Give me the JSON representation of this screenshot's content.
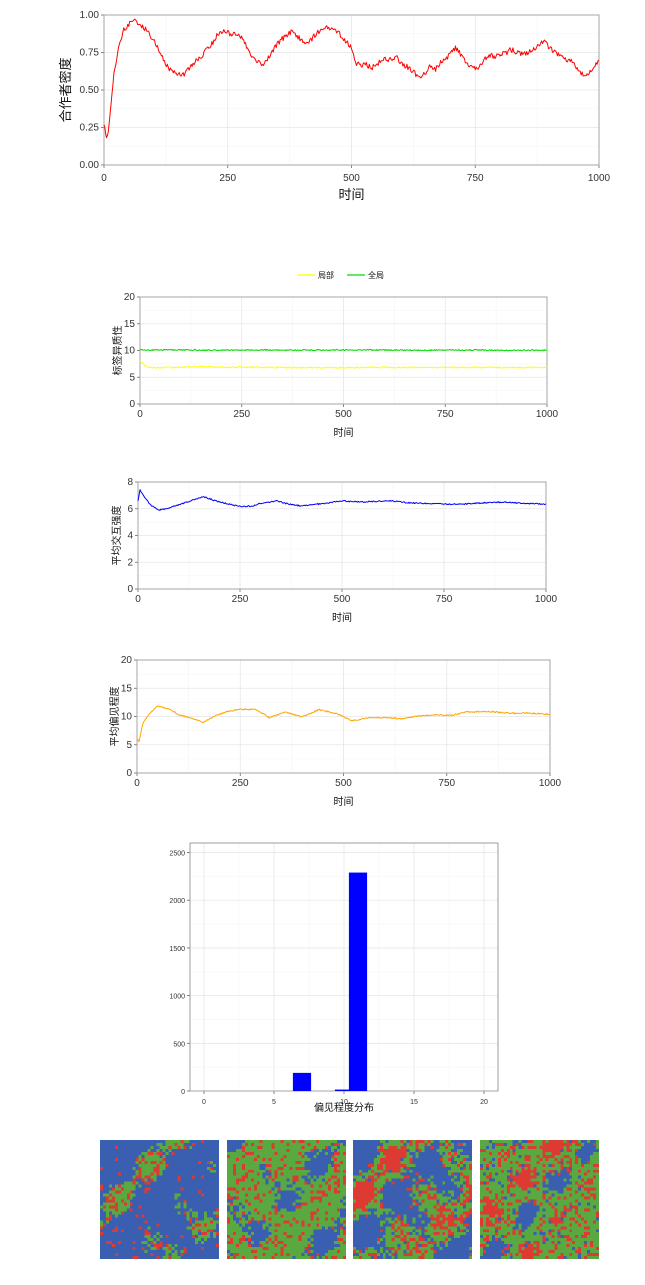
{
  "chart_data": [
    {
      "type": "line",
      "title": "",
      "xlabel": "时间",
      "ylabel": "合作者密度",
      "xlim": [
        0,
        1000
      ],
      "ylim": [
        0,
        1
      ],
      "x_ticks": [
        0,
        250,
        500,
        750,
        1000
      ],
      "x_tick_labels": [
        "0",
        "250",
        "500",
        "750",
        "1000"
      ],
      "y_ticks": [
        0,
        0.25,
        0.5,
        0.75,
        1
      ],
      "y_tick_labels": [
        "0.00",
        "0.25",
        "0.50",
        "0.75",
        "1.00"
      ],
      "grid": true,
      "series": [
        {
          "color": "#ff0000",
          "x": [
            0,
            5,
            10,
            20,
            30,
            40,
            50,
            60,
            70,
            80,
            90,
            100,
            110,
            120,
            130,
            140,
            150,
            160,
            170,
            180,
            190,
            200,
            210,
            220,
            230,
            240,
            250,
            260,
            270,
            280,
            290,
            300,
            310,
            320,
            330,
            340,
            350,
            360,
            370,
            380,
            390,
            400,
            410,
            420,
            430,
            440,
            450,
            460,
            470,
            480,
            490,
            500,
            510,
            520,
            530,
            540,
            550,
            560,
            570,
            580,
            590,
            600,
            610,
            620,
            630,
            640,
            650,
            660,
            670,
            680,
            690,
            700,
            710,
            720,
            730,
            740,
            750,
            760,
            770,
            780,
            790,
            800,
            810,
            820,
            830,
            840,
            850,
            860,
            870,
            880,
            890,
            900,
            910,
            920,
            930,
            940,
            950,
            960,
            970,
            980,
            990,
            1000
          ],
          "values": [
            0.28,
            0.17,
            0.25,
            0.6,
            0.8,
            0.9,
            0.94,
            0.96,
            0.95,
            0.92,
            0.88,
            0.83,
            0.77,
            0.7,
            0.65,
            0.62,
            0.6,
            0.6,
            0.64,
            0.68,
            0.7,
            0.74,
            0.78,
            0.82,
            0.87,
            0.89,
            0.88,
            0.87,
            0.87,
            0.84,
            0.78,
            0.72,
            0.69,
            0.66,
            0.7,
            0.76,
            0.81,
            0.84,
            0.87,
            0.89,
            0.86,
            0.83,
            0.82,
            0.84,
            0.88,
            0.9,
            0.92,
            0.91,
            0.89,
            0.86,
            0.82,
            0.78,
            0.68,
            0.66,
            0.67,
            0.65,
            0.66,
            0.7,
            0.71,
            0.7,
            0.72,
            0.68,
            0.66,
            0.64,
            0.6,
            0.58,
            0.62,
            0.66,
            0.64,
            0.68,
            0.7,
            0.75,
            0.78,
            0.74,
            0.69,
            0.65,
            0.64,
            0.66,
            0.71,
            0.73,
            0.72,
            0.74,
            0.74,
            0.77,
            0.76,
            0.74,
            0.74,
            0.76,
            0.78,
            0.8,
            0.83,
            0.78,
            0.75,
            0.74,
            0.71,
            0.7,
            0.67,
            0.62,
            0.6,
            0.61,
            0.66,
            0.7
          ]
        }
      ]
    },
    {
      "type": "line",
      "title": "",
      "xlabel": "时间",
      "ylabel": "标签异质性",
      "xlim": [
        0,
        1000
      ],
      "ylim": [
        0,
        20
      ],
      "x_ticks": [
        0,
        250,
        500,
        750,
        1000
      ],
      "x_tick_labels": [
        "0",
        "250",
        "500",
        "750",
        "1000"
      ],
      "y_ticks": [
        0,
        5,
        10,
        15,
        20
      ],
      "y_tick_labels": [
        "0",
        "5",
        "10",
        "15",
        "20"
      ],
      "grid": true,
      "legend": {
        "placement": "top"
      },
      "series": [
        {
          "name": "局部",
          "color": "#ffff00",
          "x": [
            0,
            5,
            10,
            20,
            30,
            50,
            100,
            150,
            200,
            300,
            400,
            500,
            600,
            700,
            800,
            900,
            1000
          ],
          "values": [
            8.0,
            7.8,
            7.3,
            6.9,
            6.8,
            6.8,
            6.85,
            7.0,
            6.9,
            6.85,
            6.8,
            6.8,
            6.85,
            6.8,
            6.85,
            6.8,
            6.85
          ]
        },
        {
          "name": "全局",
          "color": "#00e000",
          "x": [
            0,
            100,
            200,
            300,
            400,
            500,
            600,
            700,
            800,
            900,
            1000
          ],
          "values": [
            10.1,
            10.1,
            10.05,
            10.1,
            10.05,
            10.1,
            10.1,
            10.05,
            10.1,
            10.05,
            10.05
          ]
        }
      ]
    },
    {
      "type": "line",
      "title": "",
      "xlabel": "时间",
      "ylabel": "平均交互强度",
      "xlim": [
        0,
        1000
      ],
      "ylim": [
        0,
        8
      ],
      "x_ticks": [
        0,
        250,
        500,
        750,
        1000
      ],
      "x_tick_labels": [
        "0",
        "250",
        "500",
        "750",
        "1000"
      ],
      "y_ticks": [
        0,
        2,
        4,
        6,
        8
      ],
      "y_tick_labels": [
        "0",
        "2",
        "4",
        "6",
        "8"
      ],
      "grid": true,
      "series": [
        {
          "color": "#0000ff",
          "x": [
            0,
            5,
            15,
            30,
            50,
            70,
            100,
            130,
            160,
            180,
            200,
            230,
            250,
            280,
            300,
            340,
            360,
            400,
            440,
            480,
            500,
            540,
            580,
            620,
            660,
            700,
            750,
            800,
            850,
            900,
            950,
            1000
          ],
          "values": [
            6.6,
            7.4,
            6.9,
            6.3,
            5.9,
            6.0,
            6.3,
            6.6,
            6.9,
            6.7,
            6.5,
            6.3,
            6.15,
            6.2,
            6.4,
            6.6,
            6.4,
            6.2,
            6.35,
            6.5,
            6.6,
            6.5,
            6.55,
            6.6,
            6.45,
            6.4,
            6.35,
            6.35,
            6.45,
            6.5,
            6.4,
            6.35
          ]
        }
      ]
    },
    {
      "type": "line",
      "title": "",
      "xlabel": "时间",
      "ylabel": "平均偏见程度",
      "xlim": [
        0,
        1000
      ],
      "ylim": [
        0,
        20
      ],
      "x_ticks": [
        0,
        250,
        500,
        750,
        1000
      ],
      "x_tick_labels": [
        "0",
        "250",
        "500",
        "750",
        "1000"
      ],
      "y_ticks": [
        0,
        5,
        10,
        15,
        20
      ],
      "y_tick_labels": [
        "0",
        "5",
        "10",
        "15",
        "20"
      ],
      "grid": true,
      "series": [
        {
          "color": "#ffa500",
          "x": [
            0,
            5,
            15,
            30,
            50,
            80,
            100,
            130,
            160,
            190,
            220,
            250,
            290,
            320,
            360,
            400,
            440,
            480,
            520,
            560,
            600,
            640,
            680,
            720,
            760,
            800,
            850,
            900,
            950,
            1000
          ],
          "values": [
            6.0,
            5.5,
            9.0,
            10.5,
            11.8,
            11.3,
            10.3,
            9.8,
            8.9,
            10.2,
            10.9,
            11.3,
            11.2,
            9.8,
            10.8,
            9.9,
            11.2,
            10.6,
            9.3,
            9.7,
            9.8,
            9.6,
            10.1,
            10.3,
            10.2,
            10.8,
            10.9,
            10.6,
            10.6,
            10.4
          ]
        }
      ]
    },
    {
      "type": "bar",
      "title": "",
      "xlabel": "偏见程度分布",
      "ylabel": "",
      "xlim": [
        -1,
        21
      ],
      "ylim": [
        0,
        2600
      ],
      "x_ticks": [
        0,
        5,
        10,
        15,
        20
      ],
      "x_tick_labels": [
        "0",
        "5",
        "10",
        "15",
        "20"
      ],
      "y_ticks": [
        0,
        500,
        1000,
        1500,
        2000,
        2500
      ],
      "y_tick_labels": [
        "0",
        "500",
        "1000",
        "1500",
        "2000",
        "2500"
      ],
      "grid": true,
      "bar_color": "#0000ff",
      "categories": [
        7,
        10,
        11
      ],
      "values": [
        190,
        15,
        2290
      ]
    }
  ],
  "spatial_maps": {
    "colors": [
      "#3a5fb0",
      "#dc3a32",
      "#5aa840"
    ],
    "panels": [
      {
        "dominant": "blue"
      },
      {
        "dominant": "green"
      },
      {
        "dominant": "mixed"
      },
      {
        "dominant": "green"
      }
    ]
  }
}
